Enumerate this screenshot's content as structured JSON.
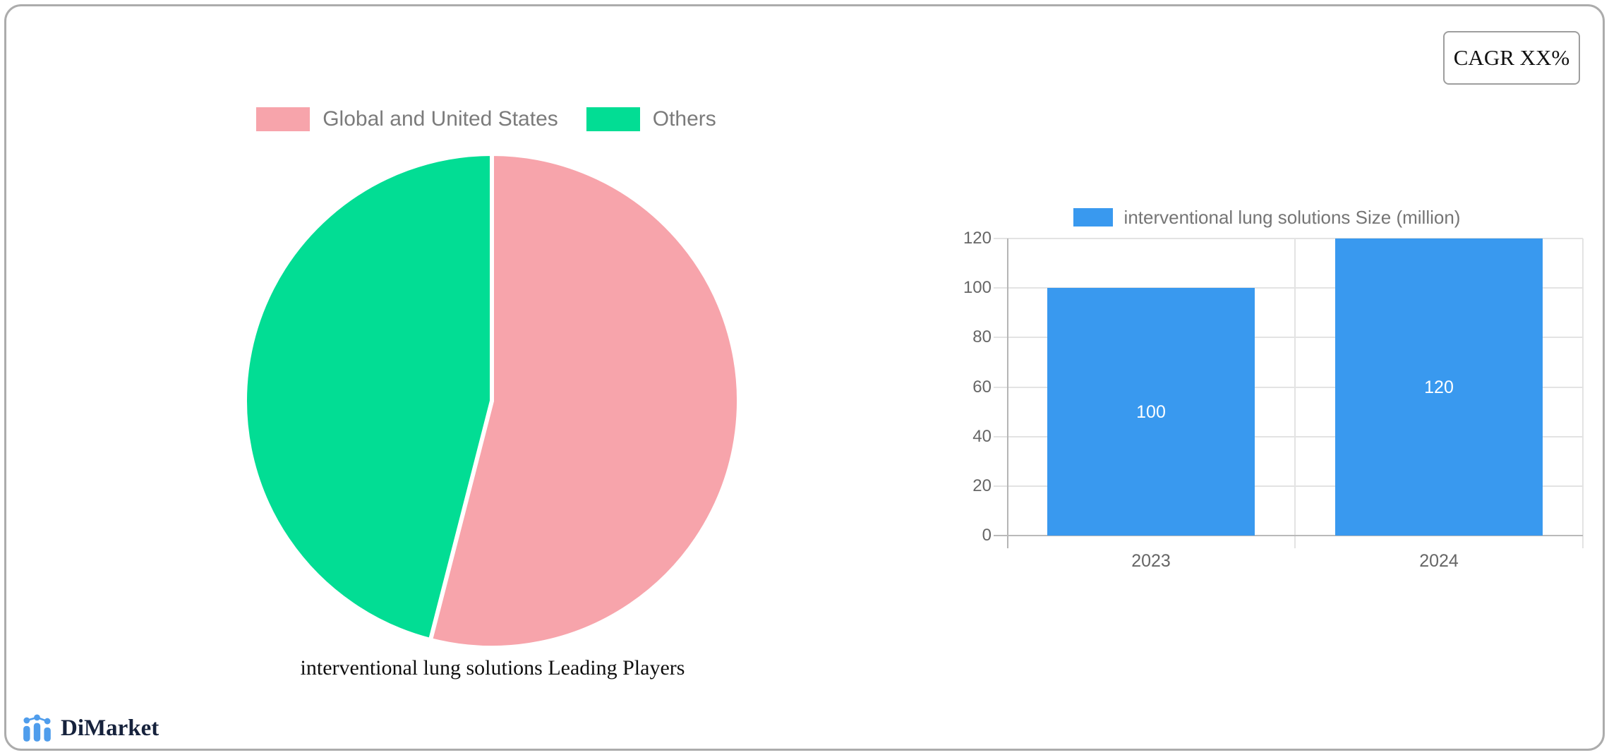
{
  "cagr": {
    "label": "CAGR XX%"
  },
  "pie": {
    "title": "interventional lung solutions Leading Players",
    "legend": [
      {
        "label": "Global and United States",
        "color": "#F7A4AB"
      },
      {
        "label": "Others",
        "color": "#02DD94"
      }
    ]
  },
  "bar": {
    "legend_label": "interventional lung solutions Size (million)"
  },
  "footer": {
    "brand": "DiMarket"
  },
  "colors": {
    "pie_pink": "#F7A4AB",
    "pie_green": "#02DD94",
    "bar_blue": "#3999EF",
    "legend_text": "#7B7B7B",
    "tick_text": "#666666",
    "gridline": "#E3E3E3",
    "axis_line": "#B5B5B5",
    "card_border": "#ACACAC",
    "logo_blue": "#4F9DEC",
    "logo_navy": "#16223C"
  },
  "chart_data": [
    {
      "type": "pie",
      "title": "interventional lung solutions Leading Players",
      "labels": [
        "Global and United States",
        "Others"
      ],
      "values": [
        54,
        46
      ],
      "colors": [
        "#F7A4AB",
        "#02DD94"
      ],
      "start_angle_deg": 0,
      "legend_position": "top",
      "slice_gap_stroke": "#ffffff"
    },
    {
      "type": "bar",
      "legend": "interventional lung solutions Size (million)",
      "categories": [
        "2023",
        "2024"
      ],
      "values": [
        100,
        120
      ],
      "data_labels": [
        "100",
        "120"
      ],
      "bar_color": "#3999EF",
      "ylim": [
        0,
        120
      ],
      "yticks": [
        0,
        20,
        40,
        60,
        80,
        100,
        120
      ],
      "grid": true,
      "legend_position": "top"
    }
  ]
}
